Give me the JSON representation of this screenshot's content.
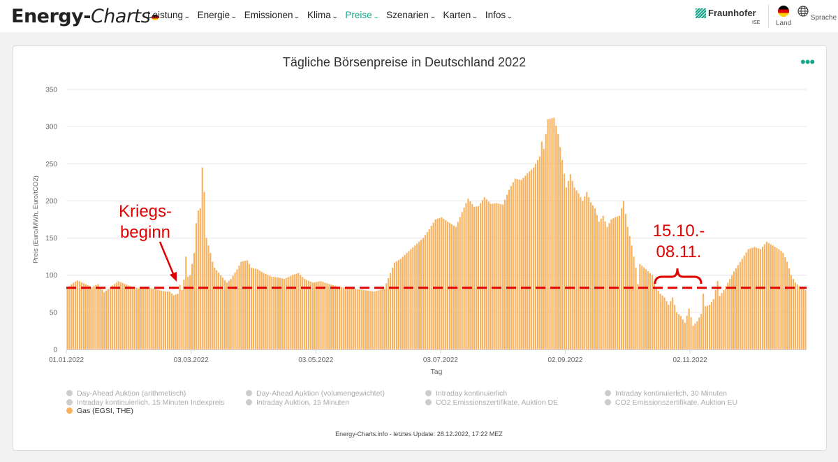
{
  "header": {
    "logo_main": "Energy-",
    "logo_sub": "Charts",
    "menu": [
      {
        "label": "Leistung",
        "active": false
      },
      {
        "label": "Energie",
        "active": false
      },
      {
        "label": "Emissionen",
        "active": false
      },
      {
        "label": "Klima",
        "active": false
      },
      {
        "label": "Preise",
        "active": true
      },
      {
        "label": "Szenarien",
        "active": false
      },
      {
        "label": "Karten",
        "active": false
      },
      {
        "label": "Infos",
        "active": false
      }
    ],
    "org_name": "Fraunhofer",
    "org_sub": "ISE",
    "land_label": "Land",
    "sprache_label": "Sprache"
  },
  "chart_data": {
    "type": "bar",
    "title": "Tägliche Börsenpreise in Deutschland 2022",
    "xlabel": "Tag",
    "ylabel": "Preis (Euro/MWh, Euro/tCO2)",
    "ylim": [
      0,
      350
    ],
    "yticks": [
      0,
      50,
      100,
      150,
      200,
      250,
      300,
      350
    ],
    "xtick_labels": [
      "01.01.2022",
      "03.03.2022",
      "03.05.2022",
      "03.07.2022",
      "02.09.2022",
      "02.11.2022"
    ],
    "xtick_days": [
      0,
      61,
      122,
      183,
      244,
      305
    ],
    "x_days": 362,
    "grid": true,
    "series": [
      {
        "name": "Gas (EGSI, THE)",
        "color": "#f8b15d",
        "anchors": [
          [
            0,
            83
          ],
          [
            3,
            90
          ],
          [
            5,
            93
          ],
          [
            8,
            89
          ],
          [
            12,
            84
          ],
          [
            15,
            88
          ],
          [
            18,
            77
          ],
          [
            22,
            86
          ],
          [
            25,
            92
          ],
          [
            30,
            86
          ],
          [
            35,
            82
          ],
          [
            40,
            83
          ],
          [
            45,
            80
          ],
          [
            48,
            78
          ],
          [
            50,
            78
          ],
          [
            52,
            73
          ],
          [
            54,
            75
          ],
          [
            55,
            87
          ],
          [
            56,
            80
          ],
          [
            57,
            94
          ],
          [
            58,
            125
          ],
          [
            59,
            98
          ],
          [
            60,
            100
          ],
          [
            61,
            115
          ],
          [
            62,
            130
          ],
          [
            63,
            170
          ],
          [
            64,
            187
          ],
          [
            65,
            190
          ],
          [
            66,
            245
          ],
          [
            67,
            212
          ],
          [
            68,
            150
          ],
          [
            69,
            140
          ],
          [
            70,
            130
          ],
          [
            71,
            118
          ],
          [
            72,
            110
          ],
          [
            75,
            100
          ],
          [
            78,
            90
          ],
          [
            80,
            95
          ],
          [
            83,
            108
          ],
          [
            85,
            118
          ],
          [
            88,
            120
          ],
          [
            90,
            110
          ],
          [
            93,
            108
          ],
          [
            96,
            103
          ],
          [
            100,
            98
          ],
          [
            103,
            97
          ],
          [
            106,
            95
          ],
          [
            110,
            100
          ],
          [
            113,
            103
          ],
          [
            116,
            95
          ],
          [
            120,
            90
          ],
          [
            124,
            92
          ],
          [
            128,
            88
          ],
          [
            132,
            85
          ],
          [
            136,
            83
          ],
          [
            140,
            82
          ],
          [
            145,
            80
          ],
          [
            150,
            78
          ],
          [
            155,
            82
          ],
          [
            160,
            117
          ],
          [
            163,
            122
          ],
          [
            166,
            130
          ],
          [
            170,
            140
          ],
          [
            174,
            150
          ],
          [
            177,
            162
          ],
          [
            180,
            175
          ],
          [
            183,
            178
          ],
          [
            186,
            172
          ],
          [
            190,
            165
          ],
          [
            193,
            185
          ],
          [
            196,
            203
          ],
          [
            199,
            192
          ],
          [
            201,
            193
          ],
          [
            204,
            205
          ],
          [
            207,
            196
          ],
          [
            210,
            197
          ],
          [
            213,
            195
          ],
          [
            216,
            215
          ],
          [
            219,
            230
          ],
          [
            222,
            228
          ],
          [
            225,
            237
          ],
          [
            228,
            245
          ],
          [
            231,
            260
          ],
          [
            232,
            280
          ],
          [
            233,
            270
          ],
          [
            235,
            310
          ],
          [
            238,
            312
          ],
          [
            240,
            290
          ],
          [
            242,
            255
          ],
          [
            244,
            218
          ],
          [
            246,
            236
          ],
          [
            248,
            218
          ],
          [
            250,
            210
          ],
          [
            252,
            200
          ],
          [
            254,
            212
          ],
          [
            256,
            198
          ],
          [
            258,
            190
          ],
          [
            260,
            172
          ],
          [
            262,
            180
          ],
          [
            264,
            165
          ],
          [
            266,
            175
          ],
          [
            268,
            178
          ],
          [
            270,
            180
          ],
          [
            272,
            200
          ],
          [
            274,
            165
          ],
          [
            276,
            140
          ],
          [
            278,
            110
          ],
          [
            279,
            88
          ],
          [
            280,
            115
          ],
          [
            283,
            108
          ],
          [
            286,
            100
          ],
          [
            288,
            83
          ],
          [
            290,
            75
          ],
          [
            292,
            70
          ],
          [
            294,
            60
          ],
          [
            296,
            70
          ],
          [
            298,
            50
          ],
          [
            300,
            45
          ],
          [
            302,
            36
          ],
          [
            304,
            55
          ],
          [
            306,
            32
          ],
          [
            308,
            38
          ],
          [
            310,
            48
          ],
          [
            311,
            75
          ],
          [
            312,
            58
          ],
          [
            314,
            60
          ],
          [
            316,
            68
          ],
          [
            318,
            92
          ],
          [
            319,
            72
          ],
          [
            321,
            80
          ],
          [
            323,
            90
          ],
          [
            326,
            105
          ],
          [
            330,
            122
          ],
          [
            333,
            135
          ],
          [
            336,
            138
          ],
          [
            339,
            135
          ],
          [
            342,
            145
          ],
          [
            345,
            140
          ],
          [
            348,
            135
          ],
          [
            350,
            130
          ],
          [
            352,
            118
          ],
          [
            354,
            100
          ],
          [
            356,
            90
          ],
          [
            358,
            85
          ],
          [
            361,
            80
          ]
        ]
      }
    ],
    "reference_line": {
      "value": 83,
      "color": "#e00000"
    },
    "annotations": [
      {
        "text_lines": [
          "Kriegs-",
          "beginn"
        ],
        "color": "#e00000"
      },
      {
        "text_lines": [
          "15.10.-",
          "08.11."
        ],
        "color": "#e00000"
      }
    ]
  },
  "legend": {
    "items": [
      {
        "label": "Day-Ahead Auktion (arithmetisch)",
        "active": false
      },
      {
        "label": "Intraday kontinuierlich, 15 Minuten Indexpreis",
        "active": false
      },
      {
        "label": "Gas (EGSI, THE)",
        "active": true
      },
      {
        "label": "Day-Ahead Auktion (volumengewichtet)",
        "active": false
      },
      {
        "label": "Intraday Auktion, 15 Minuten",
        "active": false
      },
      {
        "label": "Intraday kontinuierlich",
        "active": false
      },
      {
        "label": "CO2 Emissionszertifikate, Auktion DE",
        "active": false
      },
      {
        "label": "Intraday kontinuierlich, 30 Minuten",
        "active": false
      },
      {
        "label": "CO2 Emissionszertifikate, Auktion EU",
        "active": false
      }
    ]
  },
  "footer": "Energy-Charts.info - letztes Update: 28.12.2022, 17:22 MEZ"
}
